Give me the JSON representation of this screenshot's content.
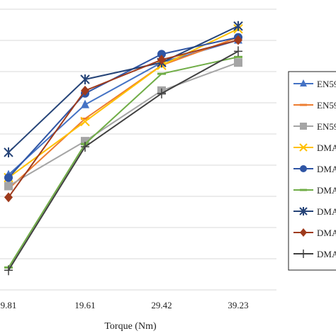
{
  "chart_data": {
    "type": "line",
    "title": "",
    "xlabel": "Torque (Nm)",
    "ylabel": "",
    "x_tick_labels": [
      "9.81",
      "19.61",
      "29.42",
      "39.23"
    ],
    "categories": [
      9.81,
      19.61,
      29.42,
      39.23
    ],
    "ylim": [
      0,
      10
    ],
    "grid": true,
    "legend_position": "right",
    "series": [
      {
        "name": "EN59",
        "color": "#4472C4",
        "marker": "triangle",
        "values": [
          4.1,
          6.6,
          8.1,
          8.9
        ]
      },
      {
        "name": "EN59",
        "color": "#ED7D31",
        "marker": "dash",
        "values": [
          3.6,
          6.1,
          8.0,
          9.0
        ]
      },
      {
        "name": "EN59",
        "color": "#A5A5A5",
        "marker": "square",
        "values": [
          3.7,
          5.3,
          7.1,
          8.1
        ]
      },
      {
        "name": "DMA",
        "color": "#FFC000",
        "marker": "x",
        "values": [
          4.0,
          6.0,
          8.0,
          9.3
        ]
      },
      {
        "name": "DMA",
        "color": "#2F55A4",
        "marker": "circle",
        "values": [
          4.0,
          7.0,
          8.4,
          9.0
        ]
      },
      {
        "name": "DMA",
        "color": "#70AD47",
        "marker": "dash",
        "values": [
          0.8,
          5.2,
          7.7,
          8.3
        ]
      },
      {
        "name": "DMA",
        "color": "#264478",
        "marker": "star",
        "values": [
          4.9,
          7.5,
          8.1,
          9.4
        ]
      },
      {
        "name": "DMA",
        "color": "#9E3A1C",
        "marker": "diamond",
        "values": [
          3.3,
          7.1,
          8.2,
          8.9
        ]
      },
      {
        "name": "DMA",
        "color": "#404040",
        "marker": "plus",
        "values": [
          0.7,
          5.1,
          7.0,
          8.5
        ]
      }
    ]
  }
}
